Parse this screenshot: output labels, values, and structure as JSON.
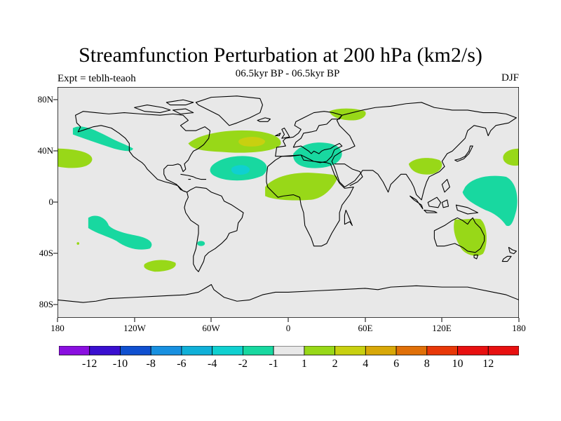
{
  "title": "Streamfunction Perturbation at 200 hPa (km2/s)",
  "subtitle": "06.5kyr BP - 06.5kyr BP",
  "left_label": "Expt = teblh-teaoh",
  "right_label": "DJF",
  "lat_labels": [
    "80N",
    "40N",
    "0",
    "40S",
    "80S"
  ],
  "lon_labels": [
    "180",
    "120W",
    "60W",
    "0",
    "60E",
    "120E",
    "180"
  ],
  "colorbar": {
    "labels": [
      "-12",
      "-10",
      "-8",
      "-6",
      "-4",
      "-2",
      "-1",
      "1",
      "2",
      "4",
      "6",
      "8",
      "10",
      "12"
    ],
    "colors": [
      "#8a0fe0",
      "#3a0fd0",
      "#1050d0",
      "#1890e0",
      "#10b0d8",
      "#10d0d0",
      "#18d8a0",
      "#e8e8e8",
      "#98d818",
      "#c8d010",
      "#d8a808",
      "#e07008",
      "#e83808",
      "#e81010"
    ]
  },
  "map_colors": {
    "ocean": "#e8e8e8",
    "coast": "#000000"
  },
  "chart_data": {
    "type": "map",
    "variable": "Streamfunction Perturbation at 200 hPa",
    "units": "km2/s",
    "season": "DJF",
    "lat_range": [
      -90,
      90
    ],
    "lon_range": [
      -180,
      180
    ],
    "anomaly_regions": [
      {
        "name": "North Pacific (east)",
        "level": "-1 to -2"
      },
      {
        "name": "North Atlantic",
        "level": "1 to 2, core 2 to 4"
      },
      {
        "name": "Subtropical Atlantic",
        "level": "-1 to -2, core -2 to -4"
      },
      {
        "name": "North Africa",
        "level": "1 to 2"
      },
      {
        "name": "Mediterranean",
        "level": "-1 to -2"
      },
      {
        "name": "Scandinavia",
        "level": "1 to 2"
      },
      {
        "name": "East Asia",
        "level": "1 to 2"
      },
      {
        "name": "West Pacific",
        "level": "-1 to -2"
      },
      {
        "name": "Australia",
        "level": "1 to 2"
      },
      {
        "name": "South Pacific",
        "level": "-1 to -2"
      },
      {
        "name": "South-East Pacific",
        "level": "1 to 2"
      },
      {
        "name": "Dateline 35N",
        "level": "1 to 2"
      }
    ]
  }
}
